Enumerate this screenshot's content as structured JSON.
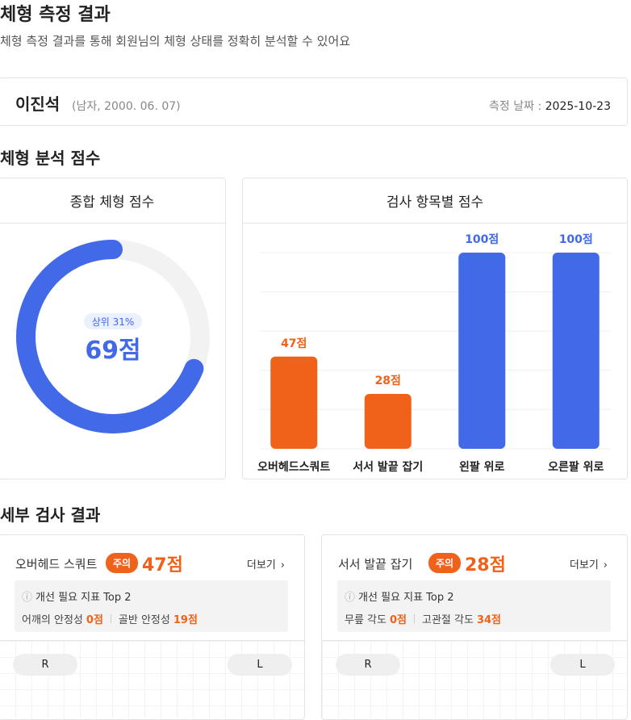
{
  "header": {
    "title": "체형 측정 결과",
    "subtitle": "체형 측정 결과를 통해 회원님의 체형 상태를 정확히 분석할 수 있어요"
  },
  "profile": {
    "name": "이진석",
    "info": "(남자, 2000. 06. 07)",
    "date_label": "측정 날짜 :",
    "date": "2025-10-23"
  },
  "analysis_title": "체형 분석 점수",
  "chart_data": [
    {
      "type": "donut",
      "title": "종합 체형 점수",
      "badge": "상위 31%",
      "values": [
        69
      ],
      "value_labels": [
        "69점"
      ],
      "ylim": [
        0,
        100
      ],
      "color": "#4169e8",
      "track_color": "#f2f2f2"
    },
    {
      "type": "bar",
      "title": "검사 항목별 점수",
      "categories": [
        "오버헤드스쿼트",
        "서서 발끝 잡기",
        "왼팔 위로",
        "오른팔 위로"
      ],
      "values": [
        47,
        28,
        100,
        100
      ],
      "value_labels": [
        "47점",
        "28점",
        "100점",
        "100점"
      ],
      "colors": [
        "#f0621a",
        "#f0621a",
        "#4169e8",
        "#4169e8"
      ],
      "ylim": [
        0,
        100
      ],
      "yticks": [
        0,
        20,
        40,
        60,
        80,
        100
      ],
      "grid": true
    }
  ],
  "details": {
    "title": "세부 검사 결과",
    "items": [
      {
        "name": "오버헤드 스쿼트",
        "status": "주의",
        "score": "47점",
        "more": "더보기",
        "box_title": "개선 필요 지표 Top 2",
        "metrics": [
          {
            "label": "어깨의 안정성",
            "value": "0점"
          },
          {
            "label": "골반 안정성",
            "value": "19점"
          }
        ],
        "left": "R",
        "right": "L"
      },
      {
        "name": "서서 발끝 잡기",
        "status": "주의",
        "score": "28점",
        "more": "더보기",
        "box_title": "개선 필요 지표 Top 2",
        "metrics": [
          {
            "label": "무릎 각도",
            "value": "0점"
          },
          {
            "label": "고관절 각도",
            "value": "34점"
          }
        ],
        "left": "R",
        "right": "L"
      }
    ]
  }
}
